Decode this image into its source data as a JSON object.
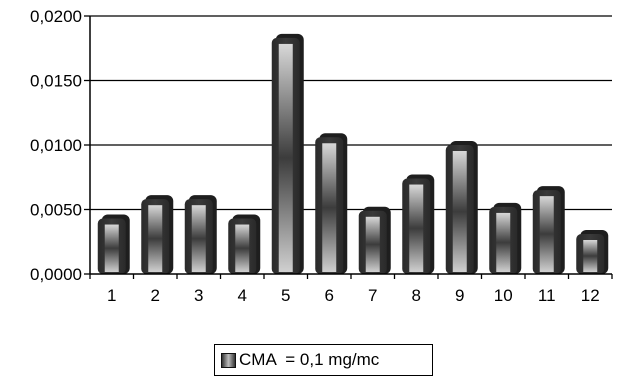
{
  "chart_data": {
    "type": "bar",
    "categories": [
      "1",
      "2",
      "3",
      "4",
      "5",
      "6",
      "7",
      "8",
      "9",
      "10",
      "11",
      "12"
    ],
    "series": [
      {
        "name": "CMA  = 0,1 mg/mc",
        "values": [
          0.0043,
          0.0058,
          0.0058,
          0.0043,
          0.0183,
          0.0106,
          0.0049,
          0.0074,
          0.01,
          0.0052,
          0.0065,
          0.0031
        ]
      }
    ],
    "y_ticks": [
      "0,0000",
      "0,0050",
      "0,0100",
      "0,0150",
      "0,0200"
    ],
    "ylim": [
      0,
      0.02
    ],
    "grid": true,
    "legend_position": "bottom",
    "colors": {
      "bar_dark": "#2f2f2f",
      "bar_light": "#c8c8c8",
      "grid": "#000000"
    }
  }
}
